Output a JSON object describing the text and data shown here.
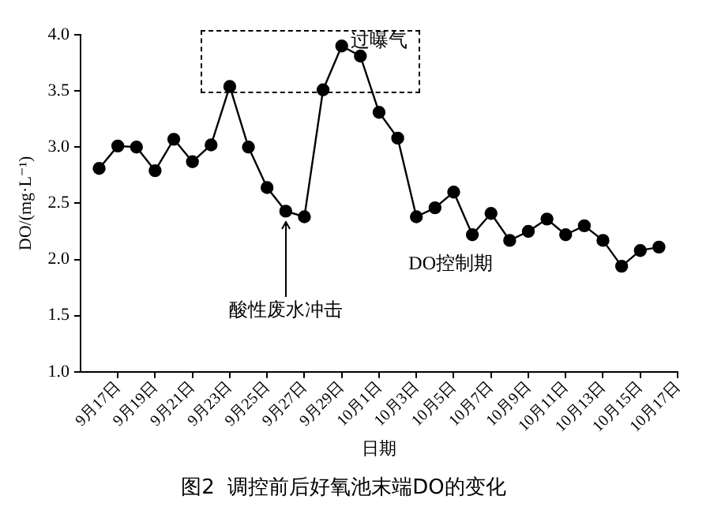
{
  "chart_data": {
    "type": "line",
    "title": "图2  调控前后好氧池末端DO的变化",
    "xlabel": "日期",
    "ylabel": "DO/(mg·L⁻¹)",
    "x": [
      "--09-16",
      "--09-17",
      "--09-18",
      "--09-19",
      "--09-20",
      "--09-21",
      "--09-22",
      "--09-23",
      "--09-24",
      "--09-25",
      "--09-26",
      "--09-27",
      "--09-28",
      "--09-29",
      "--09-30",
      "--10-01",
      "--10-02",
      "--10-03",
      "--10-04",
      "--10-05",
      "--10-06",
      "--10-07",
      "--10-08",
      "--10-09",
      "--10-10",
      "--10-11",
      "--10-12",
      "--10-13",
      "--10-14",
      "--10-15",
      "--10-16"
    ],
    "series": [
      {
        "color": "#000000",
        "values": [
          2.81,
          3.01,
          3.0,
          2.79,
          3.07,
          2.87,
          3.02,
          3.54,
          3.0,
          2.64,
          2.43,
          2.38,
          3.51,
          3.9,
          3.81,
          3.31,
          3.08,
          2.38,
          2.46,
          2.6,
          2.22,
          2.41,
          2.17,
          2.25,
          2.36,
          2.22,
          2.3,
          2.17,
          1.94,
          2.08,
          2.11
        ]
      }
    ],
    "xlim": [
      "--09-15",
      "--10-17"
    ],
    "xticks": [
      {
        "value": "--09-17",
        "label": "9月17日"
      },
      {
        "value": "--09-19",
        "label": "9月19日"
      },
      {
        "value": "--09-21",
        "label": "9月21日"
      },
      {
        "value": "--09-23",
        "label": "9月23日"
      },
      {
        "value": "--09-25",
        "label": "9月25日"
      },
      {
        "value": "--09-27",
        "label": "9月27日"
      },
      {
        "value": "--09-29",
        "label": "9月29日"
      },
      {
        "value": "--10-01",
        "label": "10月1日"
      },
      {
        "value": "--10-03",
        "label": "10月3日"
      },
      {
        "value": "--10-05",
        "label": "10月5日"
      },
      {
        "value": "--10-07",
        "label": "10月7日"
      },
      {
        "value": "--10-09",
        "label": "10月9日"
      },
      {
        "value": "--10-11",
        "label": "10月11日"
      },
      {
        "value": "--10-13",
        "label": "10月13日"
      },
      {
        "value": "--10-15",
        "label": "10月15日"
      },
      {
        "value": "--10-17",
        "label": "10月17日"
      }
    ],
    "ylim": [
      1.0,
      4.0
    ],
    "yticks": [
      {
        "value": 1.0,
        "label": "1.0"
      },
      {
        "value": 1.5,
        "label": "1.5"
      },
      {
        "value": 2.0,
        "label": "2.0"
      },
      {
        "value": 2.5,
        "label": "2.5"
      },
      {
        "value": 3.0,
        "label": "3.0"
      },
      {
        "value": 3.5,
        "label": "3.5"
      },
      {
        "value": 4.0,
        "label": "4.0"
      }
    ],
    "annotations": [
      "过曝气",
      {
        "text": "酸性废水冲击",
        "x": "--09-26",
        "y": 2.43
      },
      "DO控制期"
    ],
    "marker": "circle",
    "line_style": "solid",
    "grid": false,
    "legend": false
  }
}
